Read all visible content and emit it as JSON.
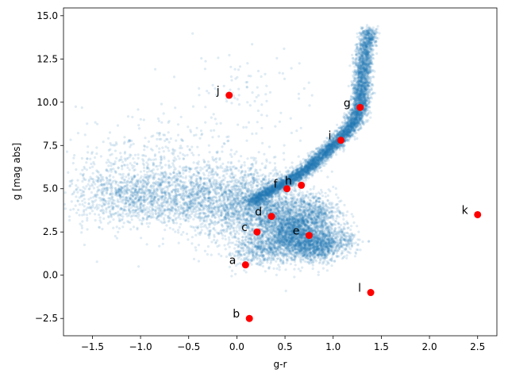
{
  "chart_data": {
    "type": "scatter",
    "title": "",
    "xlabel": "g-r",
    "ylabel": "g [mag abs]",
    "xlim": [
      -1.8,
      2.7
    ],
    "ylim": [
      15.45,
      -3.5
    ],
    "y_inverted": true,
    "grid": false,
    "legend": "none",
    "xticks": [
      -1.5,
      -1.0,
      -0.5,
      0.0,
      0.5,
      1.0,
      1.5,
      2.0,
      2.5
    ],
    "xtick_labels": [
      "−1.5",
      "−1.0",
      "−0.5",
      "0.0",
      "0.5",
      "1.0",
      "1.5",
      "2.0",
      "2.5"
    ],
    "yticks": [
      -2.5,
      0.0,
      2.5,
      5.0,
      7.5,
      10.0,
      12.5,
      15.0
    ],
    "ytick_labels": [
      "−2.5",
      "0.0",
      "2.5",
      "5.0",
      "7.5",
      "10.0",
      "12.5",
      "15.0"
    ],
    "colors": {
      "background_points": "#1f77b4",
      "highlight_points": "#ff0000"
    },
    "series": [
      {
        "role": "background_population",
        "marker_color": "#1f77b4",
        "alpha": 0.15,
        "components": [
          {
            "shape": "main-sequence-ridge",
            "path": [
              [
                0.15,
                4.2
              ],
              [
                0.35,
                4.9
              ],
              [
                0.55,
                5.5
              ],
              [
                0.75,
                6.2
              ],
              [
                0.9,
                7.0
              ],
              [
                1.05,
                7.8
              ],
              [
                1.2,
                8.7
              ],
              [
                1.28,
                9.7
              ],
              [
                1.3,
                11.0
              ],
              [
                1.32,
                12.5
              ],
              [
                1.38,
                14.2
              ]
            ],
            "width": 0.09,
            "count": 6000
          },
          {
            "shape": "giant-branch",
            "path": [
              [
                0.35,
                4.0
              ],
              [
                0.5,
                3.0
              ],
              [
                0.6,
                2.0
              ],
              [
                0.75,
                1.5
              ],
              [
                0.9,
                1.7
              ],
              [
                1.0,
                2.3
              ]
            ],
            "width": 0.28,
            "count": 2600
          },
          {
            "shape": "subgiant-band",
            "path": [
              [
                0.1,
                1.3
              ],
              [
                0.35,
                1.5
              ],
              [
                0.55,
                2.2
              ],
              [
                0.7,
                2.8
              ],
              [
                0.85,
                3.4
              ],
              [
                0.8,
                4.2
              ]
            ],
            "width": 0.25,
            "count": 1600
          },
          {
            "shape": "turnoff-blob",
            "center": [
              0.2,
              3.8
            ],
            "spread": [
              0.3,
              1.3
            ],
            "count": 2000
          },
          {
            "shape": "horizontal-branch",
            "path": [
              [
                -1.4,
                4.6
              ],
              [
                -1.0,
                4.5
              ],
              [
                -0.5,
                4.5
              ],
              [
                -0.1,
                4.3
              ]
            ],
            "width": 0.45,
            "count": 1400
          },
          {
            "shape": "blue-halo",
            "center": [
              -0.9,
              5.5
            ],
            "spread": [
              0.45,
              1.6
            ],
            "count": 900
          },
          {
            "shape": "white-dwarf-region",
            "center": [
              0.1,
              10.5
            ],
            "spread": [
              0.35,
              1.3
            ],
            "count": 100
          }
        ]
      },
      {
        "role": "highlighted_stars",
        "marker_color": "#ff0000",
        "points": [
          {
            "label": "a",
            "x": 0.09,
            "y": 0.6
          },
          {
            "label": "b",
            "x": 0.13,
            "y": -2.5
          },
          {
            "label": "c",
            "x": 0.21,
            "y": 2.5
          },
          {
            "label": "d",
            "x": 0.36,
            "y": 3.4
          },
          {
            "label": "e",
            "x": 0.75,
            "y": 2.3
          },
          {
            "label": "f",
            "x": 0.52,
            "y": 5.0
          },
          {
            "label": "h",
            "x": 0.67,
            "y": 5.2
          },
          {
            "label": "i",
            "x": 1.08,
            "y": 7.8
          },
          {
            "label": "g",
            "x": 1.28,
            "y": 9.7
          },
          {
            "label": "j",
            "x": -0.08,
            "y": 10.4
          },
          {
            "label": "k",
            "x": 2.5,
            "y": 3.5
          },
          {
            "label": "l",
            "x": 1.39,
            "y": -1.0
          }
        ]
      }
    ]
  }
}
